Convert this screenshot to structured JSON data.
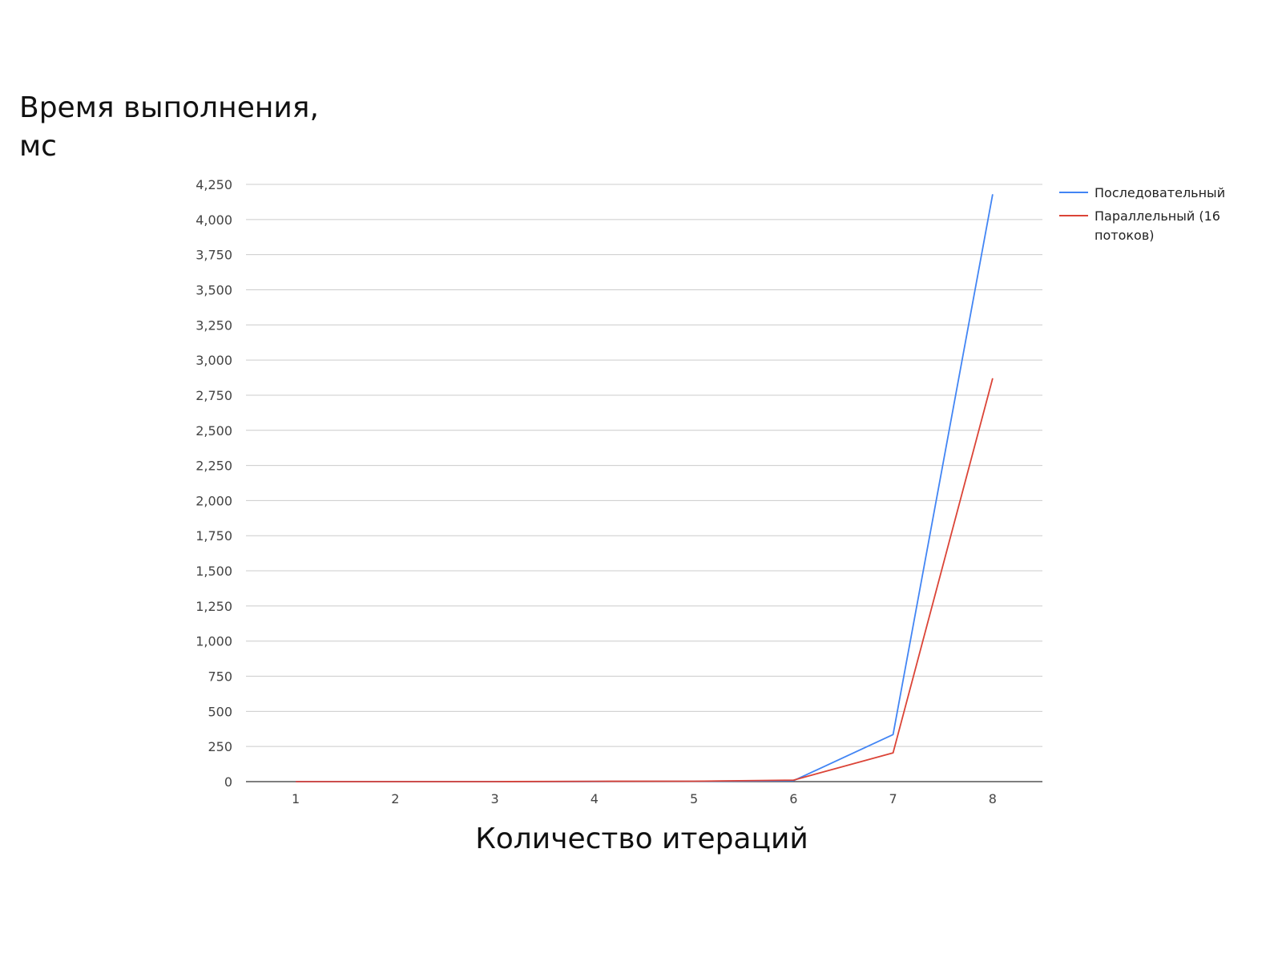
{
  "chart_data": {
    "type": "line",
    "ylabel_lines": [
      "Время выполнения,",
      "мс"
    ],
    "xlabel": "Количество итераций",
    "categories": [
      "1",
      "2",
      "3",
      "4",
      "5",
      "6",
      "7",
      "8"
    ],
    "ylim": [
      0,
      4250
    ],
    "y_ticks": [
      0,
      250,
      500,
      750,
      1000,
      1250,
      1500,
      1750,
      2000,
      2250,
      2500,
      2750,
      3000,
      3250,
      3500,
      3750,
      4000,
      4250
    ],
    "y_tick_labels": [
      "0",
      "250",
      "500",
      "750",
      "1,000",
      "1,250",
      "1,500",
      "1,750",
      "2,000",
      "2,250",
      "2,500",
      "2,750",
      "3,000",
      "3,250",
      "3,500",
      "3,750",
      "4,000",
      "4,250"
    ],
    "grid": true,
    "legend_position": "right",
    "series": [
      {
        "name": "Последовательный",
        "legend_lines": [
          "Последовательный"
        ],
        "color": "#4285f4",
        "values": [
          0,
          0,
          0,
          1,
          2,
          7,
          335,
          4180
        ]
      },
      {
        "name": "Параллельный (16 потоков)",
        "legend_lines": [
          "Параллельный (16",
          "потоков)"
        ],
        "color": "#db4437",
        "values": [
          0,
          0,
          0,
          2,
          3,
          11,
          205,
          2870
        ]
      }
    ]
  }
}
